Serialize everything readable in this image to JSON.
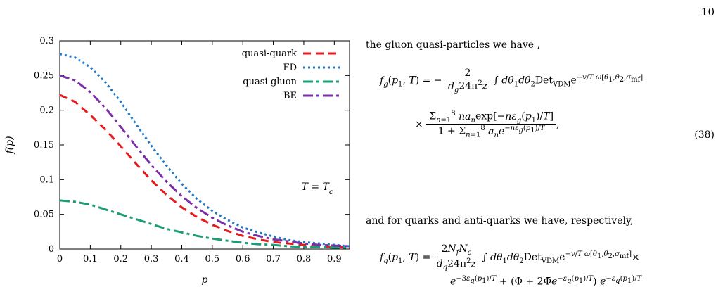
{
  "page_number": "10",
  "chart_data": {
    "type": "line",
    "xlabel": "p",
    "ylabel": "f(p)",
    "xlim": [
      0,
      0.95
    ],
    "ylim": [
      0,
      0.3
    ],
    "x_ticks": [
      "0",
      "0.1",
      "0.2",
      "0.3",
      "0.4",
      "0.5",
      "0.6",
      "0.7",
      "0.8",
      "0.9"
    ],
    "y_ticks": [
      "0",
      "0.05",
      "0.1",
      "0.15",
      "0.2",
      "0.25",
      "0.3"
    ],
    "annotation": "T = T_c",
    "legend_position": "top-right",
    "grid": false,
    "series": [
      {
        "name": "quasi-quark",
        "color": "#e41a1c",
        "dash": "dash",
        "x": [
          0,
          0.05,
          0.1,
          0.15,
          0.2,
          0.25,
          0.3,
          0.35,
          0.4,
          0.45,
          0.5,
          0.55,
          0.6,
          0.65,
          0.7,
          0.75,
          0.8,
          0.85,
          0.9,
          0.95
        ],
        "y": [
          0.222,
          0.212,
          0.193,
          0.172,
          0.148,
          0.123,
          0.099,
          0.078,
          0.06,
          0.046,
          0.035,
          0.026,
          0.019,
          0.014,
          0.01,
          0.008,
          0.006,
          0.004,
          0.003,
          0.002
        ]
      },
      {
        "name": "FD",
        "color": "#1f78c8",
        "dash": "dot",
        "x": [
          0,
          0.05,
          0.1,
          0.15,
          0.2,
          0.25,
          0.3,
          0.35,
          0.4,
          0.45,
          0.5,
          0.55,
          0.6,
          0.65,
          0.7,
          0.75,
          0.8,
          0.85,
          0.9,
          0.95
        ],
        "y": [
          0.281,
          0.276,
          0.262,
          0.24,
          0.212,
          0.18,
          0.149,
          0.12,
          0.094,
          0.072,
          0.055,
          0.042,
          0.031,
          0.024,
          0.018,
          0.013,
          0.01,
          0.008,
          0.006,
          0.004
        ]
      },
      {
        "name": "quasi-gluon",
        "color": "#1a9e77",
        "dash": "dashdot",
        "x": [
          0,
          0.05,
          0.1,
          0.15,
          0.2,
          0.25,
          0.3,
          0.35,
          0.4,
          0.45,
          0.5,
          0.55,
          0.6,
          0.65,
          0.7,
          0.75,
          0.8,
          0.85,
          0.9,
          0.95
        ],
        "y": [
          0.07,
          0.068,
          0.064,
          0.057,
          0.05,
          0.043,
          0.036,
          0.029,
          0.024,
          0.019,
          0.015,
          0.012,
          0.009,
          0.007,
          0.006,
          0.004,
          0.003,
          0.003,
          0.002,
          0.002
        ]
      },
      {
        "name": "BE",
        "color": "#7b2fa8",
        "dash": "dashdot",
        "x": [
          0,
          0.05,
          0.1,
          0.15,
          0.2,
          0.25,
          0.3,
          0.35,
          0.4,
          0.45,
          0.5,
          0.55,
          0.6,
          0.65,
          0.7,
          0.75,
          0.8,
          0.85,
          0.9,
          0.95
        ],
        "y": [
          0.25,
          0.243,
          0.226,
          0.203,
          0.176,
          0.148,
          0.121,
          0.097,
          0.076,
          0.059,
          0.045,
          0.034,
          0.025,
          0.019,
          0.014,
          0.011,
          0.008,
          0.006,
          0.005,
          0.004
        ]
      }
    ]
  },
  "text": {
    "para1": "the gluon quasi-particles we have ,",
    "para2": "and for quarks and anti-quarks we have, respectively,",
    "eq38_number": "(38)"
  }
}
